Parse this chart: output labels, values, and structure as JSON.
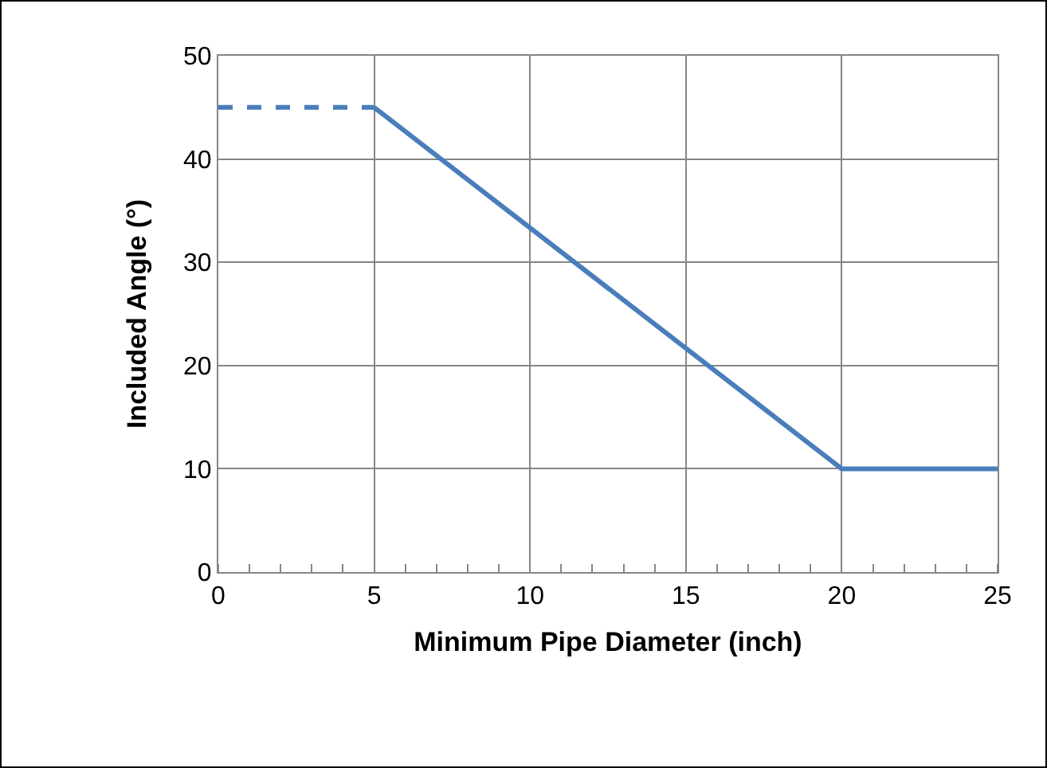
{
  "chart_data": {
    "type": "line",
    "xlabel": "Minimum Pipe Diameter (inch)",
    "ylabel": "Included Angle (°)",
    "series": [
      {
        "color": "#4a7ebb",
        "x": [
          0,
          5
        ],
        "values": [
          45,
          45
        ],
        "line_style": "dashed"
      },
      {
        "color": "#4a7ebb",
        "x": [
          5,
          20,
          25
        ],
        "values": [
          45,
          10,
          10
        ],
        "line_style": "solid"
      }
    ],
    "xlim": [
      0,
      25
    ],
    "xticks": [
      0,
      5,
      10,
      15,
      20,
      25
    ],
    "ylim": [
      0,
      50
    ],
    "yticks": [
      0,
      10,
      20,
      30,
      40,
      50
    ],
    "grid": true
  }
}
